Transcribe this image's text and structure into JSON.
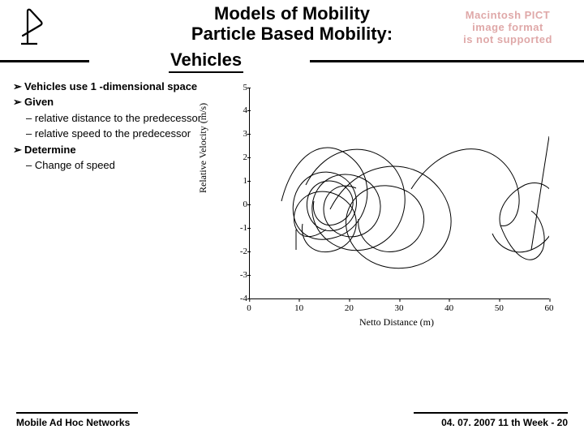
{
  "title_line1": "Models of Mobility",
  "title_line2": "Particle Based Mobility:",
  "title_line3": "Vehicles",
  "mac_pict": {
    "l1": "Macintosh PICT",
    "l2": "image format",
    "l3": "is not supported"
  },
  "bullets": {
    "b1": "Vehicles use 1 -dimensional space",
    "b2": "Given",
    "b2a": "relative distance to the predecessor",
    "b2b": "relative speed to the predecessor",
    "b3": "Determine",
    "b3a": "Change of speed"
  },
  "chart": {
    "type": "scatter-lines",
    "xlabel": "Netto Distance (m)",
    "ylabel": "Relative Velocity (m/s)",
    "xlim": [
      0,
      60
    ],
    "xtick_step": 10,
    "ylim": [
      -4,
      5
    ],
    "ytick_step": 1,
    "line_color": "#000000",
    "background_color": "#ffffff",
    "label_fontsize": 12,
    "tick_fontsize": 11,
    "font_family": "Times New Roman",
    "paths": [
      "M40,140 C55,80 95,55 130,90 C160,120 145,175 105,185 C70,195 50,170 55,140 C60,110 90,95 115,110 C140,125 138,165 110,175 C85,183 68,160 72,138 C76,116 100,108 118,122 C135,135 130,160 108,168 C90,175 76,158 80,140",
      "M70,120 C95,70 150,62 180,100 C205,135 190,185 150,198 C110,210 75,180 78,145 C81,115 110,98 140,112 C168,125 170,165 142,180 C118,192 92,175 92,150 C92,128 112,115 132,124",
      "M100,150 C130,90 200,80 235,125 C265,165 245,215 195,222 C150,228 115,195 120,160 C125,128 160,110 195,128 C225,145 222,188 188,200 C158,210 132,188 135,162",
      "M95,175 C60,200 48,165 60,145 C72,125 100,122 120,140 C140,158 135,190 108,200 C80,210 62,190 66,168",
      "M58,200 L58,175",
      "M200,125 C235,70 290,60 320,100 C345,135 330,175 310,170 C305,150 320,130 340,120 C360,112 378,124 380,148 C382,172 368,192 348,200 C328,208 308,198 300,180",
      "M310,170 C325,210 350,225 362,200 C368,182 360,160 348,152",
      "M348,200 L370,60"
    ]
  },
  "footer": {
    "left": "Mobile Ad Hoc Networks",
    "right": "04. 07. 2007 11 th Week - 20"
  },
  "arrow_glyph": "➢",
  "dash": "–"
}
